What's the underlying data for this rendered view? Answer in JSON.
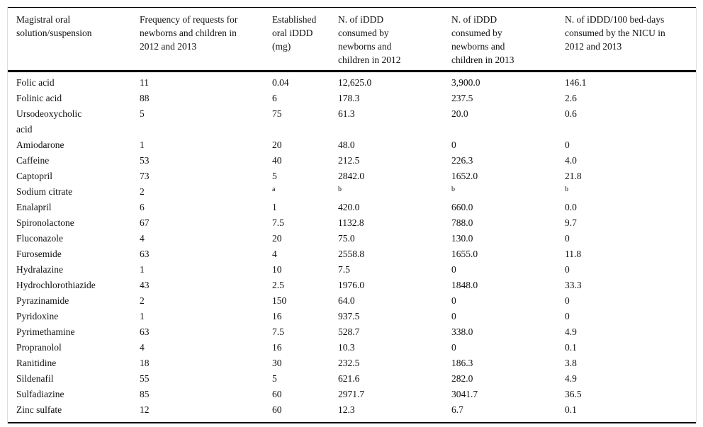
{
  "page": {
    "background_color": "#ffffff",
    "text_color": "#111111",
    "rule_color": "#000000",
    "edge_line_color": "#dcdcdc"
  },
  "table": {
    "columns": [
      "Magistral oral solution/suspension",
      "Frequency of requests for newborns and children in 2012 and 2013",
      "Established oral iDDD (mg)",
      "N. of iDDD consumed by newborns and children in 2012",
      "N. of iDDD consumed by newborns and children in 2013",
      "N. of iDDD/100 bed-days consumed by the NICU in 2012 and 2013"
    ],
    "rows": [
      {
        "cells": [
          "Folic acid",
          "11",
          "0.04",
          "12,625.0",
          "3,900.0",
          "146.1"
        ],
        "sup_cells": []
      },
      {
        "cells": [
          "Folinic acid",
          "88",
          "6",
          "178.3",
          "237.5",
          "2.6"
        ],
        "sup_cells": []
      },
      {
        "cells": [
          "Ursodeoxycholic acid",
          "5",
          "75",
          "61.3",
          "20.0",
          "0.6"
        ],
        "sup_cells": []
      },
      {
        "cells": [
          "Amiodarone",
          "1",
          "20",
          "48.0",
          "0",
          "0"
        ],
        "sup_cells": []
      },
      {
        "cells": [
          "Caffeine",
          "53",
          "40",
          "212.5",
          "226.3",
          "4.0"
        ],
        "sup_cells": []
      },
      {
        "cells": [
          "Captopril",
          "73",
          "5",
          "2842.0",
          "1652.0",
          "21.8"
        ],
        "sup_cells": []
      },
      {
        "cells": [
          "Sodium citrate",
          "2",
          "a",
          "b",
          "b",
          "b"
        ],
        "sup_cells": [
          2,
          3,
          4,
          5
        ]
      },
      {
        "cells": [
          "Enalapril",
          "6",
          "1",
          "420.0",
          "660.0",
          "0.0"
        ],
        "sup_cells": []
      },
      {
        "cells": [
          "Spironolactone",
          "67",
          "7.5",
          "1132.8",
          "788.0",
          "9.7"
        ],
        "sup_cells": []
      },
      {
        "cells": [
          "Fluconazole",
          "4",
          "20",
          "75.0",
          "130.0",
          "0"
        ],
        "sup_cells": []
      },
      {
        "cells": [
          "Furosemide",
          "63",
          "4",
          "2558.8",
          "1655.0",
          "11.8"
        ],
        "sup_cells": []
      },
      {
        "cells": [
          "Hydralazine",
          "1",
          "10",
          "7.5",
          "0",
          "0"
        ],
        "sup_cells": []
      },
      {
        "cells": [
          "Hydrochlorothiazide",
          "43",
          "2.5",
          "1976.0",
          "1848.0",
          "33.3"
        ],
        "sup_cells": []
      },
      {
        "cells": [
          "Pyrazinamide",
          "2",
          "150",
          "64.0",
          "0",
          "0"
        ],
        "sup_cells": []
      },
      {
        "cells": [
          "Pyridoxine",
          "1",
          "16",
          "937.5",
          "0",
          "0"
        ],
        "sup_cells": []
      },
      {
        "cells": [
          "Pyrimethamine",
          "63",
          "7.5",
          "528.7",
          "338.0",
          "4.9"
        ],
        "sup_cells": []
      },
      {
        "cells": [
          "Propranolol",
          "4",
          "16",
          "10.3",
          "0",
          "0.1"
        ],
        "sup_cells": []
      },
      {
        "cells": [
          "Ranitidine",
          "18",
          "30",
          "232.5",
          "186.3",
          "3.8"
        ],
        "sup_cells": []
      },
      {
        "cells": [
          "Sildenafil",
          "55",
          "5",
          "621.6",
          "282.0",
          "4.9"
        ],
        "sup_cells": []
      },
      {
        "cells": [
          "Sulfadiazine",
          "85",
          "60",
          "2971.7",
          "3041.7",
          "36.5"
        ],
        "sup_cells": []
      },
      {
        "cells": [
          "Zinc sulfate",
          "12",
          "60",
          "12.3",
          "6.7",
          "0.1"
        ],
        "sup_cells": []
      }
    ]
  }
}
